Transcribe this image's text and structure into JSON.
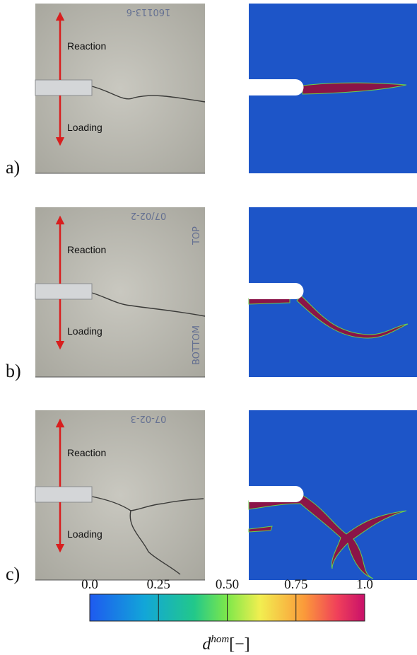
{
  "panels": [
    {
      "label": "a)",
      "reaction": "Reaction",
      "loading": "Loading",
      "specimen_id": "160113-6"
    },
    {
      "label": "b)",
      "reaction": "Reaction",
      "loading": "Loading",
      "specimen_id": "07/02-2",
      "top_mark": "TOP",
      "bottom_mark": "BOTTOM"
    },
    {
      "label": "c)",
      "reaction": "Reaction",
      "loading": "Loading",
      "specimen_id": "07-02-3"
    }
  ],
  "colorbar": {
    "clim": [
      0,
      1
    ],
    "ticks": [
      {
        "value": 0,
        "label": "0.0"
      },
      {
        "value": 0.25,
        "label": "0.25"
      },
      {
        "value": 0.5,
        "label": "0.50"
      },
      {
        "value": 0.75,
        "label": "0.75"
      },
      {
        "value": 1,
        "label": "1.0"
      }
    ],
    "label": {
      "symbol": "d",
      "superscript": "hom",
      "unit": "[−]"
    }
  }
}
